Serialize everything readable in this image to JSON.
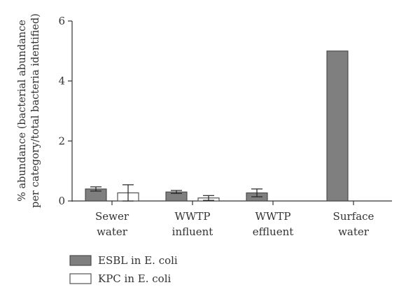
{
  "chart_data": {
    "type": "bar",
    "title": "",
    "xlabel": "",
    "ylabel_lines": [
      "% abundance (bacterial abundance",
      "per category/total bacteria identified)"
    ],
    "ylim": [
      0,
      6
    ],
    "yticks": [
      "0",
      "2",
      "4",
      "6"
    ],
    "categories": [
      [
        "Sewer",
        "water"
      ],
      [
        "WWTP",
        "influent"
      ],
      [
        "WWTP",
        "effluent"
      ],
      [
        "Surface",
        "water"
      ]
    ],
    "series": [
      {
        "name": "ESBL in E. coli",
        "color": "#7f7f7f",
        "values": [
          0.4,
          0.3,
          0.27,
          5.0
        ],
        "errors": [
          0.07,
          0.05,
          0.13,
          null
        ]
      },
      {
        "name": "KPC in E. coli",
        "color": "#ffffff",
        "values": [
          0.27,
          0.1,
          null,
          null
        ],
        "errors": [
          0.27,
          0.08,
          null,
          null
        ]
      }
    ],
    "legend_position": "bottom-left",
    "grid": false
  }
}
